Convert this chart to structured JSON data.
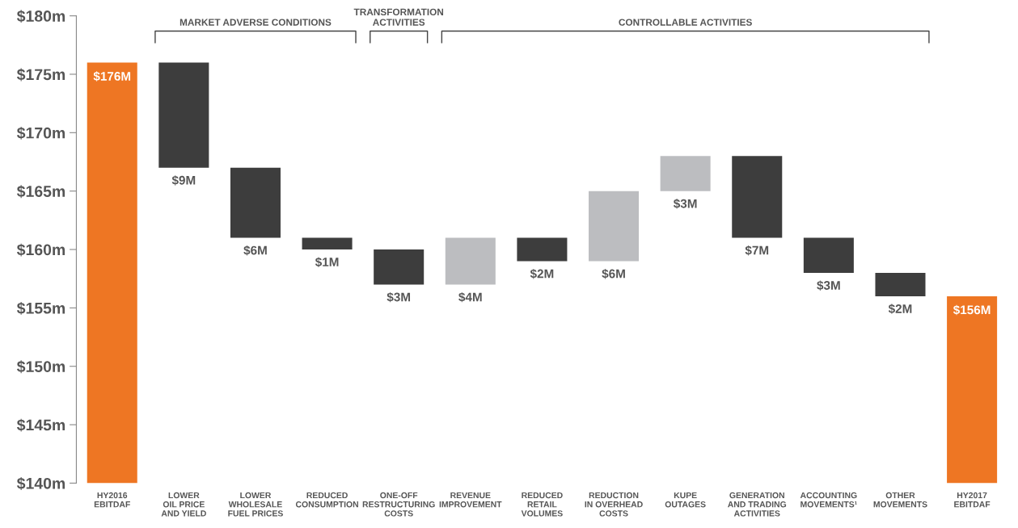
{
  "chart_data": {
    "type": "bar",
    "categories": [
      "HY2016\nEBITDAF",
      "LOWER\nOIL PRICE\nAND YIELD",
      "LOWER\nWHOLESALE\nFUEL PRICES",
      "REDUCED\nCONSUMPTION",
      "ONE-OFF\nRESTRUCTURING\nCOSTS",
      "REVENUE\nIMPROVEMENT",
      "REDUCED\nRETAIL\nVOLUMES",
      "REDUCTION\nIN OVERHEAD\nCOSTS",
      "KUPE\nOUTAGES",
      "GENERATION\nAND TRADING\nACTIVITIES",
      "ACCOUNTING\nMOVEMENTS¹",
      "OTHER\nMOVEMENTS",
      "HY2017\nEBITDAF"
    ],
    "base": [
      140,
      167,
      161,
      160,
      157,
      157,
      159,
      159,
      165,
      161,
      158,
      156,
      140
    ],
    "values": [
      36,
      9,
      6,
      1,
      3,
      4,
      2,
      6,
      3,
      7,
      3,
      2,
      16
    ],
    "colors": [
      "#ee7623",
      "#3d3d3d",
      "#3d3d3d",
      "#3d3d3d",
      "#3d3d3d",
      "#bcbdc0",
      "#3d3d3d",
      "#bcbdc0",
      "#bcbdc0",
      "#3d3d3d",
      "#3d3d3d",
      "#3d3d3d",
      "#ee7623"
    ],
    "value_labels": [
      "$176M",
      "$9M",
      "$6M",
      "$1M",
      "$3M",
      "$4M",
      "$2M",
      "$6M",
      "$3M",
      "$7M",
      "$3M",
      "$2M",
      "$156M"
    ],
    "annotations": [
      "MARKET ADVERSE CONDITIONS",
      "TRANSFORMATION\nACTIVITIES",
      "CONTROLLABLE ACTIVITIES"
    ],
    "ylim": [
      140,
      180
    ],
    "yticks": [
      {
        "value": 140,
        "label": "$140m"
      },
      {
        "value": 145,
        "label": "$145m"
      },
      {
        "value": 150,
        "label": "$150m"
      },
      {
        "value": 155,
        "label": "$155m"
      },
      {
        "value": 160,
        "label": "$160m"
      },
      {
        "value": 165,
        "label": "$165m"
      },
      {
        "value": 170,
        "label": "$170m"
      },
      {
        "value": 175,
        "label": "$175m"
      },
      {
        "value": 180,
        "label": "$180m"
      }
    ],
    "grid": false
  }
}
